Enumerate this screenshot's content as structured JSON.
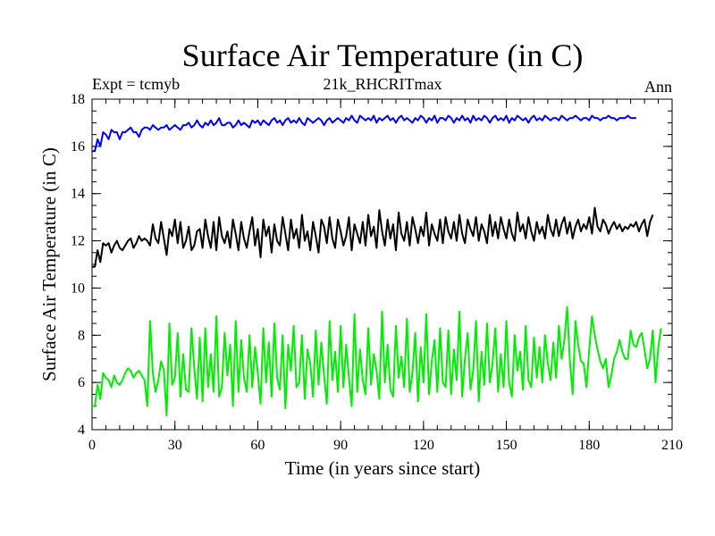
{
  "chart_data": {
    "type": "line",
    "title": "Surface Air Temperature (in C)",
    "experiment_label": "Expt = tcmyb",
    "run_label": "21k_RHCRITmax",
    "season_label": "Ann",
    "xlabel": "Time (in years since start)",
    "ylabel": "Surface Air Temperature (in C)",
    "xlim": [
      0,
      210
    ],
    "ylim": [
      4,
      18
    ],
    "xticks": [
      0,
      30,
      60,
      90,
      120,
      150,
      180,
      210
    ],
    "yticks": [
      4,
      6,
      8,
      10,
      12,
      14,
      16,
      18
    ],
    "x_minor_step": 5,
    "y_minor_step": 0.5,
    "grid": false,
    "series": [
      {
        "name": "blue",
        "color": "#0000ff",
        "x_start": 0,
        "x_step": 1,
        "values": [
          15.8,
          15.8,
          16.3,
          16.0,
          16.6,
          16.5,
          16.3,
          16.7,
          16.6,
          16.6,
          16.3,
          16.6,
          16.6,
          16.7,
          16.8,
          16.6,
          16.6,
          16.4,
          16.7,
          16.8,
          16.8,
          16.7,
          16.9,
          16.8,
          16.7,
          16.8,
          16.8,
          16.9,
          16.7,
          16.8,
          16.9,
          16.8,
          16.7,
          16.9,
          16.9,
          17.0,
          16.8,
          16.9,
          17.1,
          16.9,
          16.8,
          17.0,
          16.9,
          17.1,
          16.9,
          17.0,
          17.2,
          16.9,
          16.9,
          17.0,
          17.0,
          16.8,
          16.9,
          17.1,
          16.9,
          17.0,
          16.9,
          16.8,
          17.1,
          17.0,
          17.1,
          16.9,
          17.1,
          17.0,
          16.9,
          17.1,
          17.2,
          17.0,
          17.1,
          16.9,
          17.1,
          17.2,
          17.0,
          17.1,
          17.0,
          17.2,
          17.0,
          16.9,
          17.2,
          17.1,
          17.0,
          17.1,
          17.2,
          17.1,
          16.9,
          17.1,
          17.2,
          17.0,
          17.1,
          17.2,
          17.1,
          17.0,
          17.2,
          17.1,
          17.3,
          17.1,
          17.0,
          17.3,
          17.2,
          17.1,
          17.2,
          17.1,
          17.3,
          17.0,
          17.2,
          17.1,
          17.2,
          17.3,
          17.1,
          17.2,
          17.0,
          17.2,
          17.3,
          17.1,
          17.2,
          17.1,
          17.0,
          17.2,
          17.1,
          17.3,
          17.2,
          17.0,
          17.2,
          17.1,
          17.3,
          17.0,
          17.2,
          17.2,
          17.1,
          17.3,
          17.2,
          17.0,
          17.2,
          17.1,
          17.3,
          17.1,
          17.2,
          17.0,
          17.3,
          17.1,
          17.2,
          17.1,
          17.3,
          17.2,
          17.0,
          17.2,
          17.3,
          17.1,
          17.2,
          17.1,
          17.3,
          17.0,
          17.2,
          17.1,
          17.3,
          17.2,
          17.1,
          17.2,
          17.0,
          17.2,
          17.3,
          17.1,
          17.2,
          17.1,
          17.3,
          17.2,
          17.1,
          17.2,
          17.2,
          17.1,
          17.3,
          17.2,
          17.1,
          17.2,
          17.2,
          17.3,
          17.2,
          17.1,
          17.2,
          17.2,
          17.1,
          17.3,
          17.2,
          17.2,
          17.1,
          17.2,
          17.2,
          17.3,
          17.2,
          17.2,
          17.1,
          17.2,
          17.2,
          17.2,
          17.3,
          17.2,
          17.2,
          17.2
        ]
      },
      {
        "name": "black",
        "color": "#000000",
        "x_start": 0,
        "x_step": 1,
        "values": [
          10.9,
          10.9,
          11.6,
          11.1,
          11.9,
          11.8,
          11.9,
          11.5,
          11.8,
          12.0,
          11.7,
          11.6,
          11.8,
          12.0,
          12.1,
          11.7,
          11.9,
          12.2,
          12.0,
          12.1,
          12.0,
          11.8,
          12.7,
          12.1,
          11.9,
          12.8,
          12.1,
          11.4,
          12.5,
          12.2,
          12.9,
          11.9,
          12.8,
          11.7,
          12.0,
          12.6,
          11.6,
          11.8,
          12.4,
          12.5,
          11.7,
          12.9,
          12.2,
          11.7,
          12.8,
          11.6,
          13.0,
          12.2,
          11.9,
          12.4,
          11.7,
          12.9,
          12.3,
          11.6,
          12.8,
          12.1,
          11.7,
          12.4,
          13.0,
          11.8,
          12.5,
          11.3,
          12.9,
          12.2,
          12.6,
          11.5,
          12.7,
          12.0,
          11.8,
          13.0,
          12.3,
          11.6,
          12.9,
          12.1,
          12.5,
          11.7,
          13.1,
          12.0,
          12.4,
          11.6,
          12.8,
          12.2,
          11.5,
          12.9,
          12.6,
          11.9,
          13.0,
          12.1,
          11.7,
          12.9,
          12.4,
          11.8,
          12.2,
          13.0,
          11.6,
          12.7,
          12.3,
          11.9,
          12.8,
          11.8,
          13.1,
          12.2,
          12.6,
          11.7,
          13.3,
          12.4,
          11.8,
          12.9,
          12.1,
          12.7,
          11.6,
          13.2,
          12.3,
          12.0,
          12.8,
          11.8,
          13.0,
          12.5,
          11.9,
          12.6,
          12.2,
          13.2,
          11.8,
          12.7,
          12.3,
          12.0,
          12.9,
          11.9,
          13.0,
          12.4,
          12.1,
          12.8,
          12.0,
          13.1,
          12.3,
          11.9,
          12.9,
          12.5,
          12.2,
          13.0,
          12.0,
          12.7,
          12.4,
          11.9,
          13.1,
          12.2,
          12.8,
          12.1,
          13.0,
          12.5,
          12.1,
          12.9,
          12.3,
          12.0,
          13.2,
          12.4,
          12.7,
          12.1,
          13.0,
          12.4,
          12.0,
          12.8,
          12.3,
          12.6,
          12.1,
          13.1,
          12.5,
          12.2,
          12.9,
          12.2,
          12.7,
          13.0,
          12.3,
          12.8,
          12.1,
          12.6,
          12.9,
          12.4,
          12.7,
          12.5,
          13.0,
          12.3,
          13.4,
          12.6,
          12.4,
          12.9,
          12.7,
          12.3,
          12.6,
          12.8,
          12.5,
          12.7,
          12.4,
          12.6,
          12.5,
          12.7,
          12.6,
          12.8,
          12.4,
          12.7,
          12.9,
          12.2,
          12.8,
          13.1
        ]
      },
      {
        "name": "green",
        "color": "#00ee00",
        "x_start": 0,
        "x_step": 1,
        "values": [
          5.0,
          5.0,
          5.9,
          5.3,
          6.4,
          6.2,
          6.1,
          5.8,
          6.3,
          6.0,
          5.9,
          6.1,
          6.4,
          6.6,
          6.5,
          6.2,
          6.4,
          6.5,
          6.3,
          6.1,
          5.0,
          8.6,
          6.4,
          5.6,
          6.1,
          6.9,
          6.5,
          4.6,
          8.5,
          5.9,
          6.2,
          8.1,
          5.4,
          7.2,
          5.7,
          5.6,
          8.3,
          6.6,
          5.3,
          7.9,
          5.2,
          8.3,
          5.8,
          7.2,
          5.6,
          8.8,
          5.4,
          5.8,
          8.1,
          6.3,
          7.6,
          5.0,
          8.6,
          5.6,
          7.8,
          6.2,
          5.6,
          8.0,
          5.8,
          7.5,
          6.4,
          5.1,
          8.3,
          6.0,
          7.7,
          5.4,
          8.5,
          6.2,
          5.7,
          8.0,
          4.9,
          7.6,
          6.5,
          8.4,
          5.8,
          6.0,
          8.0,
          5.3,
          7.4,
          6.8,
          5.4,
          8.2,
          5.9,
          7.7,
          6.3,
          5.1,
          8.6,
          6.1,
          7.3,
          5.6,
          8.4,
          5.8,
          7.6,
          6.2,
          5.0,
          8.9,
          5.6,
          7.4,
          6.1,
          5.5,
          8.3,
          5.9,
          7.2,
          6.5,
          5.3,
          9.0,
          6.0,
          7.6,
          5.7,
          5.4,
          8.4,
          6.2,
          7.1,
          5.8,
          8.7,
          5.6,
          6.4,
          8.1,
          5.2,
          7.5,
          6.0,
          8.9,
          5.5,
          6.9,
          7.8,
          5.6,
          8.3,
          6.0,
          5.8,
          8.2,
          5.5,
          7.4,
          6.1,
          9.0,
          5.4,
          7.0,
          8.1,
          5.7,
          6.5,
          8.6,
          5.2,
          7.3,
          5.9,
          8.5,
          6.0,
          6.8,
          8.3,
          5.6,
          7.2,
          5.8,
          8.6,
          6.0,
          5.4,
          8.0,
          6.5,
          7.3,
          5.7,
          8.4,
          6.1,
          5.8,
          7.9,
          6.2,
          7.5,
          6.0,
          8.0,
          6.8,
          6.1,
          7.7,
          6.2,
          8.4,
          7.0,
          7.8,
          9.2,
          6.9,
          5.5,
          8.6,
          7.6,
          6.9,
          6.8,
          5.8,
          7.4,
          8.8,
          8.0,
          7.4,
          6.9,
          6.6,
          7.0,
          5.8,
          6.3,
          7.0,
          7.3,
          7.8,
          7.3,
          7.0,
          7.0,
          8.2,
          7.6,
          7.5,
          7.9,
          8.1,
          7.4,
          6.6,
          7.0,
          8.2,
          6.0,
          7.5,
          8.3
        ]
      }
    ]
  }
}
